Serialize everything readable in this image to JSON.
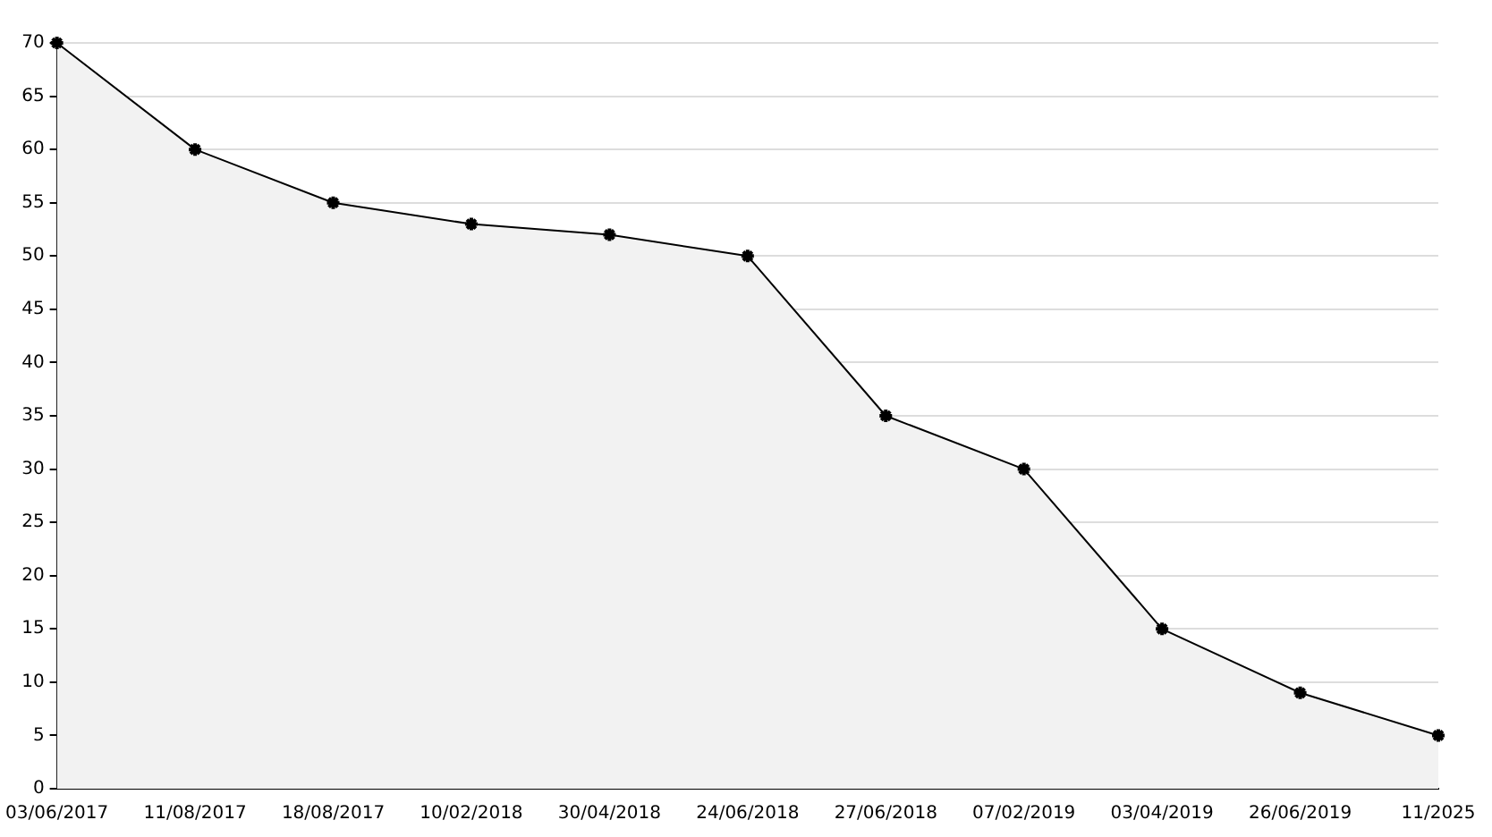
{
  "chart_data": {
    "type": "area",
    "categories": [
      "03/06/2017",
      "11/08/2017",
      "18/08/2017",
      "10/02/2018",
      "30/04/2018",
      "24/06/2018",
      "27/06/2018",
      "07/02/2019",
      "03/04/2019",
      "26/06/2019",
      "11/2025"
    ],
    "series": [
      {
        "color": "#000000",
        "values": [
          70,
          60,
          55,
          53,
          52,
          50,
          35,
          30,
          15,
          9,
          5
        ]
      }
    ],
    "ylim": [
      0,
      70
    ],
    "yticks": [
      0,
      5,
      10,
      15,
      20,
      25,
      30,
      35,
      40,
      45,
      50,
      55,
      60,
      65,
      70
    ],
    "grid": "y",
    "legend": false,
    "marker": "cross",
    "line_style": "solid"
  }
}
